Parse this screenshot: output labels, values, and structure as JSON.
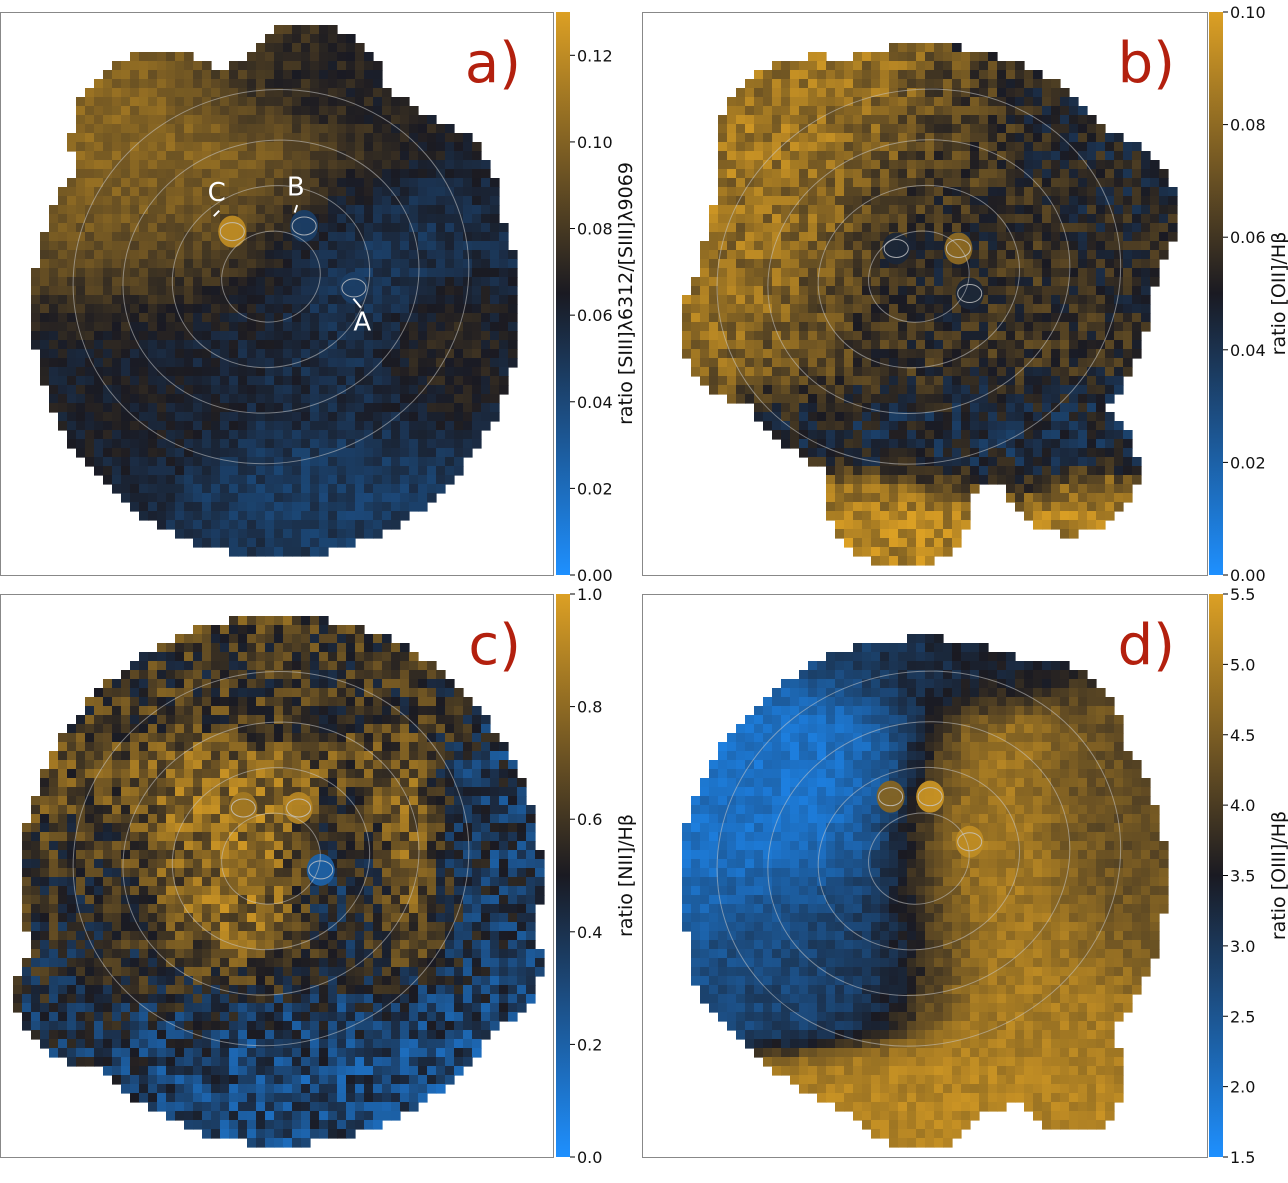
{
  "chart_data": [
    {
      "type": "heatmap",
      "panel_label": "a)",
      "colorbar": {
        "label": "ratio [SIII]λ6312/[SIII]λ9069",
        "min": 0.0,
        "max": 0.13,
        "ticks": [
          0.0,
          0.02,
          0.04,
          0.06,
          0.08,
          0.1,
          0.12
        ],
        "tick_labels": [
          "0.00",
          "0.02",
          "0.04",
          "0.06",
          "0.08",
          "0.10",
          "0.12"
        ]
      },
      "annotations": [
        "A",
        "B",
        "C"
      ],
      "map_regions": [
        {
          "cx": 0.33,
          "cy": 0.32,
          "rx": 0.28,
          "ry": 0.23,
          "value": 0.105
        },
        {
          "cx": 0.6,
          "cy": 0.13,
          "rx": 0.25,
          "ry": 0.09,
          "value": 0.068
        },
        {
          "cx": 0.48,
          "cy": 0.55,
          "rx": 0.36,
          "ry": 0.27,
          "value": 0.056
        },
        {
          "cx": 0.63,
          "cy": 0.45,
          "rx": 0.16,
          "ry": 0.15,
          "value": 0.045
        },
        {
          "cx": 0.57,
          "cy": 0.83,
          "rx": 0.19,
          "ry": 0.09,
          "value": 0.046
        },
        {
          "cx": 0.78,
          "cy": 0.58,
          "rx": 0.1,
          "ry": 0.11,
          "value": 0.075
        },
        {
          "cx": 0.25,
          "cy": 0.7,
          "rx": 0.16,
          "ry": 0.09,
          "value": 0.066
        }
      ],
      "hotspots": [
        {
          "name": "C",
          "x": 0.42,
          "y": 0.39,
          "value": 0.12
        },
        {
          "name": "B",
          "x": 0.55,
          "y": 0.38,
          "value": 0.045
        },
        {
          "name": "A",
          "x": 0.64,
          "y": 0.49,
          "value": 0.045
        }
      ]
    },
    {
      "type": "heatmap",
      "panel_label": "b)",
      "colorbar": {
        "label": "ratio [OII]/Hβ",
        "min": 0.0,
        "max": 0.1,
        "ticks": [
          0.0,
          0.02,
          0.04,
          0.06,
          0.08,
          0.1
        ],
        "tick_labels": [
          "0.00",
          "0.02",
          "0.04",
          "0.06",
          "0.08",
          "0.10"
        ]
      },
      "map_regions": [
        {
          "cx": 0.25,
          "cy": 0.3,
          "rx": 0.2,
          "ry": 0.25,
          "value": 0.085
        },
        {
          "cx": 0.5,
          "cy": 0.43,
          "rx": 0.28,
          "ry": 0.23,
          "value": 0.062
        },
        {
          "cx": 0.5,
          "cy": 0.45,
          "rx": 0.15,
          "ry": 0.14,
          "value": 0.045
        },
        {
          "cx": 0.55,
          "cy": 0.75,
          "rx": 0.28,
          "ry": 0.1,
          "value": 0.045
        },
        {
          "cx": 0.43,
          "cy": 0.88,
          "rx": 0.2,
          "ry": 0.07,
          "value": 0.09
        },
        {
          "cx": 0.78,
          "cy": 0.88,
          "rx": 0.1,
          "ry": 0.06,
          "value": 0.088
        },
        {
          "cx": 0.78,
          "cy": 0.3,
          "rx": 0.12,
          "ry": 0.2,
          "value": 0.05
        }
      ],
      "hotspots": [
        {
          "x": 0.56,
          "y": 0.42,
          "value": 0.08
        },
        {
          "x": 0.45,
          "y": 0.42,
          "value": 0.045
        },
        {
          "x": 0.58,
          "y": 0.5,
          "value": 0.045
        }
      ]
    },
    {
      "type": "heatmap",
      "panel_label": "c)",
      "colorbar": {
        "label": "ratio [NII]/Hβ",
        "min": 0.0,
        "max": 1.0,
        "ticks": [
          0.0,
          0.2,
          0.4,
          0.6,
          0.8,
          1.0
        ],
        "tick_labels": [
          "0.0",
          "0.2",
          "0.4",
          "0.6",
          "0.8",
          "1.0"
        ]
      },
      "map_regions": [
        {
          "cx": 0.45,
          "cy": 0.46,
          "rx": 0.35,
          "ry": 0.28,
          "value": 0.8
        },
        {
          "cx": 0.6,
          "cy": 0.5,
          "rx": 0.09,
          "ry": 0.17,
          "value": 0.25
        },
        {
          "cx": 0.52,
          "cy": 0.8,
          "rx": 0.4,
          "ry": 0.15,
          "value": 0.3
        },
        {
          "cx": 0.18,
          "cy": 0.6,
          "rx": 0.14,
          "ry": 0.25,
          "value": 0.45
        },
        {
          "cx": 0.88,
          "cy": 0.45,
          "rx": 0.1,
          "ry": 0.25,
          "value": 0.35
        },
        {
          "cx": 0.5,
          "cy": 0.18,
          "rx": 0.35,
          "ry": 0.1,
          "value": 0.55
        }
      ],
      "hotspots": [
        {
          "x": 0.44,
          "y": 0.38,
          "value": 0.85
        },
        {
          "x": 0.54,
          "y": 0.38,
          "value": 0.9
        },
        {
          "x": 0.58,
          "y": 0.49,
          "value": 0.2
        }
      ]
    },
    {
      "type": "heatmap",
      "panel_label": "d)",
      "colorbar": {
        "label": "ratio [OIII]/Hβ",
        "min": 1.5,
        "max": 5.5,
        "ticks": [
          1.5,
          2.0,
          2.5,
          3.0,
          3.5,
          4.0,
          4.5,
          5.0,
          5.5
        ],
        "tick_labels": [
          "1.5",
          "2.0",
          "2.5",
          "3.0",
          "3.5",
          "4.0",
          "4.5",
          "5.0",
          "5.5"
        ]
      },
      "map_regions": [
        {
          "cx": 0.28,
          "cy": 0.35,
          "rx": 0.22,
          "ry": 0.25,
          "value": 2.0
        },
        {
          "cx": 0.35,
          "cy": 0.6,
          "rx": 0.2,
          "ry": 0.15,
          "value": 2.9
        },
        {
          "cx": 0.62,
          "cy": 0.5,
          "rx": 0.2,
          "ry": 0.3,
          "value": 5.0
        },
        {
          "cx": 0.8,
          "cy": 0.4,
          "rx": 0.12,
          "ry": 0.2,
          "value": 4.2
        },
        {
          "cx": 0.48,
          "cy": 0.88,
          "rx": 0.25,
          "ry": 0.07,
          "value": 5.1
        },
        {
          "cx": 0.5,
          "cy": 0.12,
          "rx": 0.25,
          "ry": 0.08,
          "value": 3.2
        }
      ],
      "hotspots": [
        {
          "x": 0.51,
          "y": 0.36,
          "value": 5.3
        },
        {
          "x": 0.44,
          "y": 0.36,
          "value": 4.6
        },
        {
          "x": 0.58,
          "y": 0.44,
          "value": 5.2
        }
      ]
    }
  ],
  "colors": {
    "cmap_low": "#1e90ff",
    "cmap_mid": "#1a1a22",
    "cmap_high": "#dca024",
    "panel_label": "#b3200e",
    "contour": "#c8c8c8",
    "annotation_text": "#ffffff"
  }
}
